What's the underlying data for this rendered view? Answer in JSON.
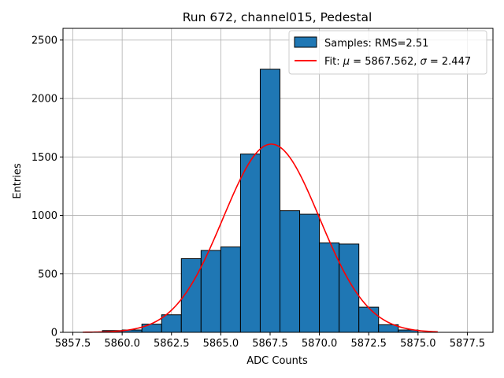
{
  "chart_data": {
    "type": "bar",
    "title": "Run 672, channel015, Pedestal",
    "xlabel": "ADC Counts",
    "ylabel": "Entries",
    "xlim": [
      5857.0,
      5878.8
    ],
    "ylim": [
      0,
      2600
    ],
    "x_ticks": [
      5857.5,
      5860.0,
      5862.5,
      5865.0,
      5867.5,
      5870.0,
      5872.5,
      5875.0,
      5877.5
    ],
    "x_tick_labels": [
      "5857.5",
      "5860.0",
      "5862.5",
      "5865.0",
      "5867.5",
      "5870.0",
      "5872.5",
      "5875.0",
      "5877.5"
    ],
    "y_ticks": [
      0,
      500,
      1000,
      1500,
      2000,
      2500
    ],
    "y_tick_labels": [
      "0",
      "500",
      "1000",
      "1500",
      "2000",
      "2500"
    ],
    "grid": true,
    "legend_position": "top-right",
    "histogram": {
      "bin_edges": [
        5859,
        5860,
        5861,
        5862,
        5863,
        5864,
        5865,
        5866,
        5867,
        5868,
        5869,
        5870,
        5871,
        5872,
        5873,
        5874,
        5875
      ],
      "counts": [
        15,
        20,
        70,
        150,
        630,
        700,
        730,
        1525,
        2250,
        1040,
        1010,
        765,
        755,
        215,
        65,
        20
      ],
      "color": "#1f77b4",
      "edge_color": "#000000"
    },
    "fit": {
      "mu": 5867.562,
      "sigma": 2.447,
      "amplitude": 1610,
      "x_range": [
        5858,
        5876
      ],
      "color": "#ff0000"
    },
    "series": [
      {
        "name": "Samples: RMS=2.51",
        "kind": "histogram"
      },
      {
        "name": "Fit: μ = 5867.562, σ = 2.447",
        "kind": "line"
      }
    ]
  },
  "legend": {
    "samples_label": "Samples: RMS=2.51",
    "fit_prefix": "Fit: ",
    "fit_mu_symbol": "μ",
    "fit_mu_value": " = 5867.562, ",
    "fit_sigma_symbol": "σ",
    "fit_sigma_value": " = 2.447"
  },
  "colors": {
    "bar_fill": "#1f77b4",
    "fit_line": "#ff0000",
    "grid": "#b0b0b0"
  }
}
